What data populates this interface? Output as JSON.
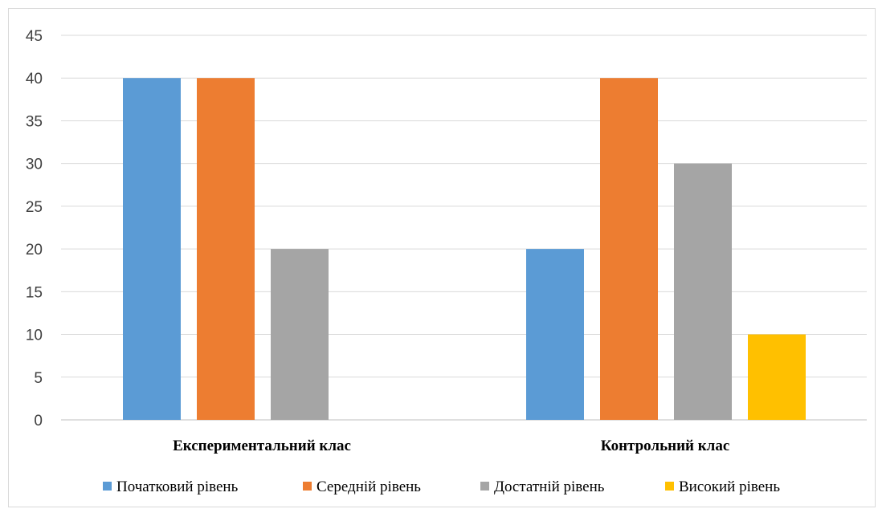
{
  "chart_data": {
    "type": "bar",
    "categories": [
      "Експериментальний клас",
      "Контрольний клас"
    ],
    "series": [
      {
        "name": "Початковий рівень",
        "color": "#5b9bd5",
        "values": [
          40,
          20
        ]
      },
      {
        "name": "Середній рівень",
        "color": "#ed7d31",
        "values": [
          40,
          40
        ]
      },
      {
        "name": "Достатній рівень",
        "color": "#a5a5a5",
        "values": [
          20,
          30
        ]
      },
      {
        "name": "Високий рівень",
        "color": "#ffc000",
        "values": [
          0,
          10
        ]
      }
    ],
    "yticks": [
      "0",
      "5",
      "10",
      "15",
      "20",
      "25",
      "30",
      "35",
      "40",
      "45"
    ],
    "ylim": [
      0,
      45
    ],
    "grid": true,
    "legend_position": "bottom",
    "title": "",
    "xlabel": "",
    "ylabel": ""
  }
}
